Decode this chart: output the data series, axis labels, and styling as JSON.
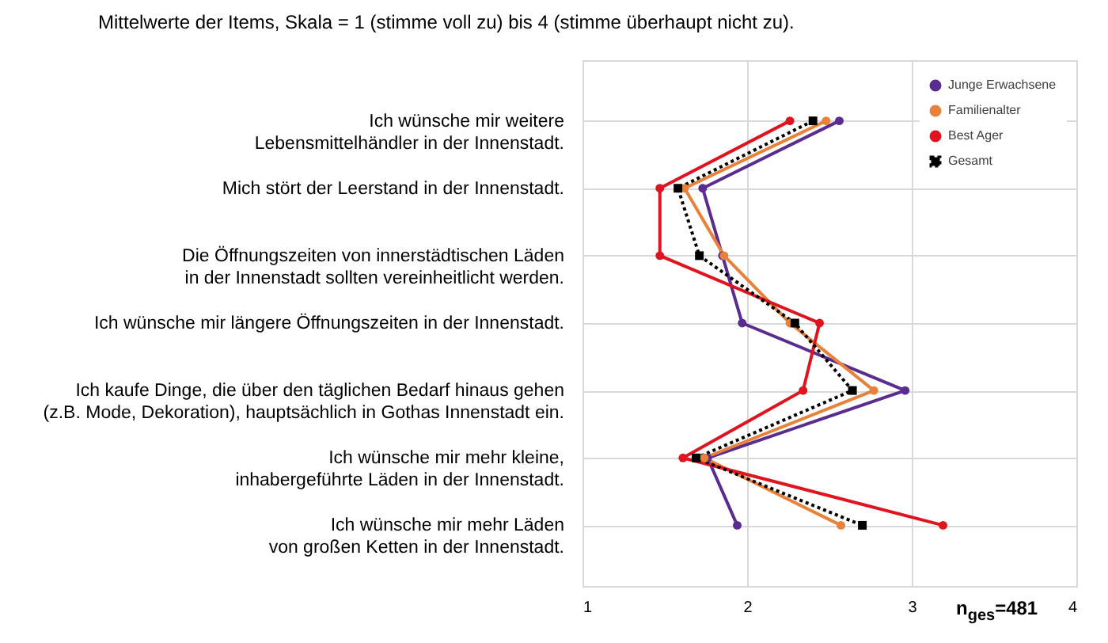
{
  "chart_data": {
    "type": "line",
    "title": "Mittelwerte der Items, Skala = 1 (stimme voll zu) bis 4 (stimme überhaupt nicht zu).",
    "categories": [
      "Ich wünsche mir weitere\nLebensmittelhändler in der Innenstadt.",
      "Mich stört der Leerstand in der Innenstadt.",
      "Die Öffnungszeiten von innerstädtischen Läden\nin der Innenstadt sollten vereinheitlicht werden.",
      "Ich wünsche mir längere Öffnungszeiten in der Innenstadt.",
      "Ich kaufe Dinge, die über den täglichen Bedarf hinaus gehen\n(z.B. Mode, Dekoration), hauptsächlich in Gothas Innenstadt ein.",
      "Ich wünsche mir mehr kleine,\ninhabergeführte Läden in der Innenstadt.",
      "Ich wünsche mir mehr Läden\nvon großen Ketten in der Innenstadt."
    ],
    "orientation": "horizontal",
    "series": [
      {
        "name": "Junge Erwachsene",
        "color": "#5b2c8f",
        "marker": "circle",
        "line_style": "solid",
        "values": [
          2.56,
          1.73,
          1.85,
          1.97,
          2.96,
          1.76,
          1.94
        ]
      },
      {
        "name": "Familienalter",
        "color": "#e8823a",
        "marker": "circle",
        "line_style": "solid",
        "values": [
          2.48,
          1.62,
          1.86,
          2.26,
          2.77,
          1.74,
          2.57
        ]
      },
      {
        "name": "Best Ager",
        "color": "#e0141e",
        "marker": "circle",
        "line_style": "solid",
        "values": [
          2.26,
          1.47,
          1.47,
          2.44,
          2.34,
          1.61,
          3.19
        ]
      },
      {
        "name": "Gesamt",
        "color": "#000000",
        "marker": "square",
        "line_style": "dotted",
        "values": [
          2.4,
          1.58,
          1.71,
          2.29,
          2.64,
          1.69,
          2.7
        ]
      }
    ],
    "xlim": [
      1,
      4
    ],
    "xticks": [
      1,
      2,
      3,
      4
    ],
    "grid": true,
    "legend": "top right",
    "annotations": [
      "n$_{ges}$=481"
    ]
  }
}
